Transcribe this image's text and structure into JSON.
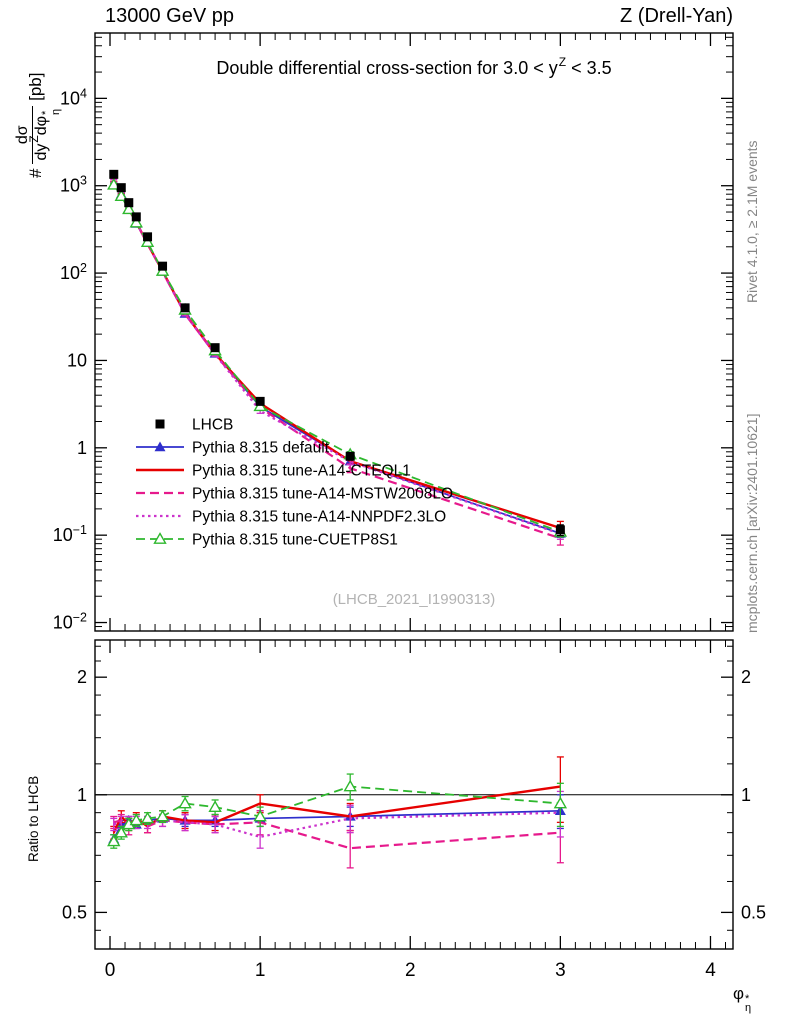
{
  "page": {
    "header_left": "13000 GeV pp",
    "header_right": "Z (Drell-Yan)",
    "title": {
      "prefix": "Double differential cross-section for 3.0 < y",
      "sup": "Z",
      "suffix": " < 3.5"
    },
    "ylabel_main": {
      "hash": "#",
      "num": "dσ",
      "den1": "dy",
      "den1_sup": "Z",
      "den2": "dφ",
      "den2_sup": "*",
      "den2_sub": "η",
      "units": "[pb]"
    },
    "ylabel_ratio": "Ratio to LHCB",
    "xlabel": {
      "base": "φ",
      "sup": "*",
      "sub": "η"
    },
    "watermark": "(LHCB_2021_I1990313)",
    "side_top": "Rivet 4.1.0, ≥ 2.1M events",
    "side_bottom": "mcplots.cern.ch [arXiv:2401.10621]"
  },
  "chart_data": {
    "type": "line",
    "title": "Double differential cross-section for 3.0 < y^Z < 3.5",
    "xlabel": "phi*_eta",
    "x": [
      0.025,
      0.075,
      0.125,
      0.175,
      0.25,
      0.35,
      0.5,
      0.7,
      1.0,
      1.6,
      3.0
    ],
    "xlim": [
      -0.1,
      4.15
    ],
    "xticks": [
      0,
      1,
      2,
      3,
      4
    ],
    "main": {
      "ylabel": "# dsigma/dy^Z dphi*_eta [pb]",
      "yscale": "log",
      "ylim": [
        0.008,
        56000
      ],
      "data": {
        "name": "LHCB",
        "marker": "square",
        "color": "#000000",
        "values": [
          1350,
          950,
          640,
          440,
          260,
          120,
          40,
          14,
          3.4,
          0.8,
          0.115
        ],
        "rel_err": [
          0.04,
          0.04,
          0.04,
          0.04,
          0.04,
          0.05,
          0.05,
          0.06,
          0.07,
          0.09,
          0.14
        ]
      }
    },
    "ratio": {
      "ylabel": "Ratio to LHCB",
      "yscale": "log",
      "ylim": [
        0.403,
        2.49
      ],
      "yticks": [
        0.5,
        1,
        2
      ],
      "reference_line": 1
    },
    "series": [
      {
        "name": "Pythia 8.315 default",
        "color": "#2e2ecc",
        "dash": "solid",
        "marker": "triangle-filled",
        "width": 1.7,
        "ratio": [
          0.77,
          0.84,
          0.86,
          0.84,
          0.86,
          0.87,
          0.86,
          0.86,
          0.87,
          0.88,
          0.91
        ],
        "ratio_err": [
          0.02,
          0.02,
          0.02,
          0.02,
          0.02,
          0.02,
          0.03,
          0.03,
          0.04,
          0.05,
          0.09
        ]
      },
      {
        "name": "Pythia 8.315 tune-A14-CTEQL1",
        "color": "#e60000",
        "dash": "solid",
        "marker": "none",
        "width": 2.4,
        "ratio": [
          0.8,
          0.88,
          0.84,
          0.87,
          0.83,
          0.88,
          0.86,
          0.85,
          0.95,
          0.88,
          1.05
        ],
        "ratio_err": [
          0.03,
          0.03,
          0.03,
          0.03,
          0.03,
          0.03,
          0.04,
          0.04,
          0.05,
          0.07,
          0.2
        ]
      },
      {
        "name": "Pythia 8.315 tune-A14-MSTW2008LO",
        "color": "#e6198c",
        "dash": "dashed",
        "marker": "none",
        "width": 2.2,
        "ratio": [
          0.85,
          0.86,
          0.82,
          0.86,
          0.83,
          0.86,
          0.85,
          0.84,
          0.85,
          0.73,
          0.8
        ],
        "ratio_err": [
          0.03,
          0.03,
          0.03,
          0.03,
          0.03,
          0.03,
          0.04,
          0.04,
          0.06,
          0.08,
          0.13
        ]
      },
      {
        "name": "Pythia 8.315 tune-A14-NNPDF2.3LO",
        "color": "#cc33cc",
        "dash": "dotted",
        "marker": "none",
        "width": 2.2,
        "ratio": [
          0.84,
          0.85,
          0.85,
          0.85,
          0.85,
          0.86,
          0.85,
          0.84,
          0.78,
          0.87,
          0.9
        ],
        "ratio_err": [
          0.03,
          0.03,
          0.03,
          0.03,
          0.03,
          0.03,
          0.04,
          0.04,
          0.05,
          0.07,
          0.12
        ]
      },
      {
        "name": "Pythia 8.315 tune-CUETP8S1",
        "color": "#2eb82e",
        "dash": "dashed",
        "marker": "triangle-open",
        "width": 1.8,
        "ratio": [
          0.76,
          0.8,
          0.84,
          0.86,
          0.87,
          0.88,
          0.95,
          0.93,
          0.88,
          1.05,
          0.95
        ],
        "ratio_err": [
          0.03,
          0.03,
          0.03,
          0.03,
          0.03,
          0.03,
          0.04,
          0.04,
          0.05,
          0.08,
          0.12
        ]
      }
    ]
  }
}
